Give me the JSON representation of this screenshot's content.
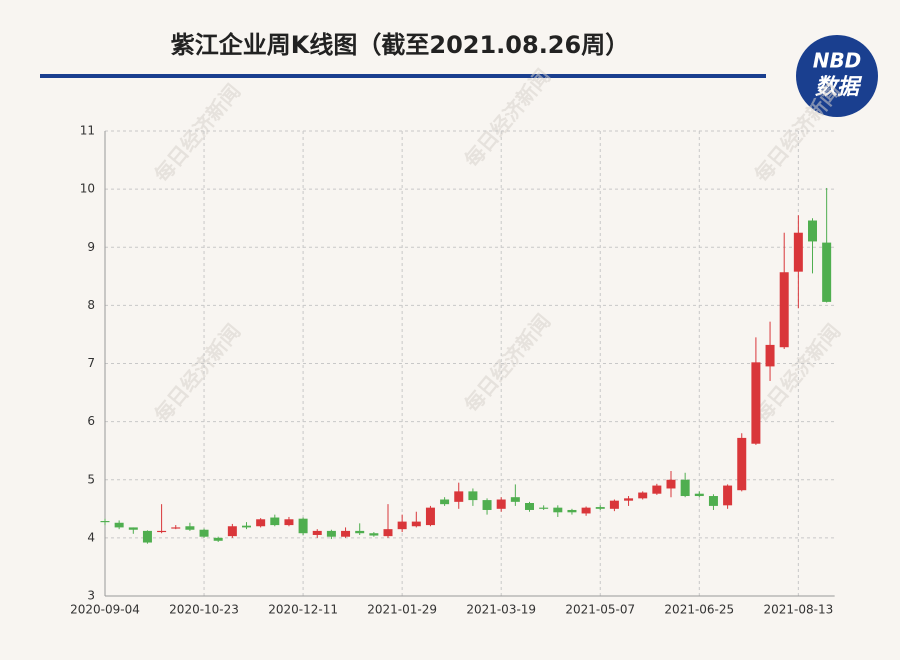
{
  "chart_data": {
    "type": "candlestick",
    "title": "紫江企业周K线图（截至2021.08.26周）",
    "logo": {
      "top": "NBD",
      "bottom": "数据"
    },
    "watermark": "每日经济新闻",
    "categories": [
      "2020-09-04",
      null,
      null,
      null,
      null,
      null,
      null,
      "2020-10-23",
      null,
      null,
      null,
      null,
      null,
      null,
      "2020-12-11",
      null,
      null,
      null,
      null,
      null,
      null,
      "2021-01-29",
      null,
      null,
      null,
      null,
      null,
      null,
      "2021-03-19",
      null,
      null,
      null,
      null,
      null,
      null,
      "2021-05-07",
      null,
      null,
      null,
      null,
      null,
      null,
      "2021-06-25",
      null,
      null,
      null,
      null,
      null,
      null,
      "2021-08-13",
      null,
      null
    ],
    "open": [
      4.29,
      4.26,
      4.18,
      4.12,
      4.1,
      4.16,
      4.2,
      4.14,
      4.0,
      4.03,
      4.21,
      4.2,
      4.35,
      4.22,
      4.33,
      4.05,
      4.12,
      4.02,
      4.12,
      4.08,
      4.03,
      4.15,
      4.2,
      4.22,
      4.66,
      4.62,
      4.8,
      4.65,
      4.5,
      4.7,
      4.6,
      4.52,
      4.52,
      4.48,
      4.42,
      4.53,
      4.5,
      4.64,
      4.68,
      4.76,
      4.85,
      5.0,
      4.76,
      4.72,
      4.56,
      4.82,
      5.62,
      6.95,
      7.28,
      8.58,
      9.46,
      9.08
    ],
    "high": [
      4.33,
      4.3,
      4.18,
      4.13,
      4.58,
      4.22,
      4.26,
      4.16,
      4.02,
      4.24,
      4.27,
      4.34,
      4.4,
      4.36,
      4.35,
      4.15,
      4.14,
      4.18,
      4.25,
      4.1,
      4.58,
      4.4,
      4.45,
      4.55,
      4.7,
      4.95,
      4.85,
      4.68,
      4.7,
      4.92,
      4.62,
      4.56,
      4.56,
      4.5,
      4.54,
      4.56,
      4.66,
      4.72,
      4.8,
      4.93,
      5.15,
      5.12,
      4.8,
      4.75,
      4.92,
      5.8,
      7.45,
      7.72,
      9.25,
      9.55,
      9.5,
      10.02
    ],
    "low": [
      4.22,
      4.15,
      4.07,
      3.9,
      4.08,
      4.15,
      4.12,
      4.0,
      3.93,
      4.0,
      4.15,
      4.18,
      4.2,
      4.2,
      4.05,
      4.0,
      3.98,
      4.0,
      4.05,
      4.02,
      4.0,
      4.1,
      4.18,
      4.2,
      4.55,
      4.5,
      4.55,
      4.4,
      4.45,
      4.55,
      4.45,
      4.48,
      4.36,
      4.4,
      4.38,
      4.48,
      4.46,
      4.55,
      4.66,
      4.74,
      4.7,
      4.7,
      4.7,
      4.48,
      4.5,
      4.8,
      5.6,
      6.7,
      7.25,
      7.95,
      8.55,
      8.05
    ],
    "close": [
      4.27,
      4.18,
      4.14,
      3.92,
      4.12,
      4.18,
      4.14,
      4.02,
      3.95,
      4.2,
      4.18,
      4.32,
      4.22,
      4.32,
      4.08,
      4.12,
      4.02,
      4.12,
      4.08,
      4.04,
      4.15,
      4.28,
      4.28,
      4.52,
      4.58,
      4.8,
      4.65,
      4.48,
      4.66,
      4.62,
      4.48,
      4.5,
      4.44,
      4.44,
      4.52,
      4.5,
      4.64,
      4.68,
      4.78,
      4.9,
      5.0,
      4.72,
      4.72,
      4.55,
      4.9,
      5.72,
      7.02,
      7.32,
      8.57,
      9.25,
      9.1,
      8.06
    ],
    "up_color": "#d9363a",
    "down_color": "#4fae4f",
    "ylim": [
      3,
      11
    ],
    "yticks": [
      3,
      4,
      5,
      6,
      7,
      8,
      9,
      10,
      11
    ],
    "grid": true
  }
}
